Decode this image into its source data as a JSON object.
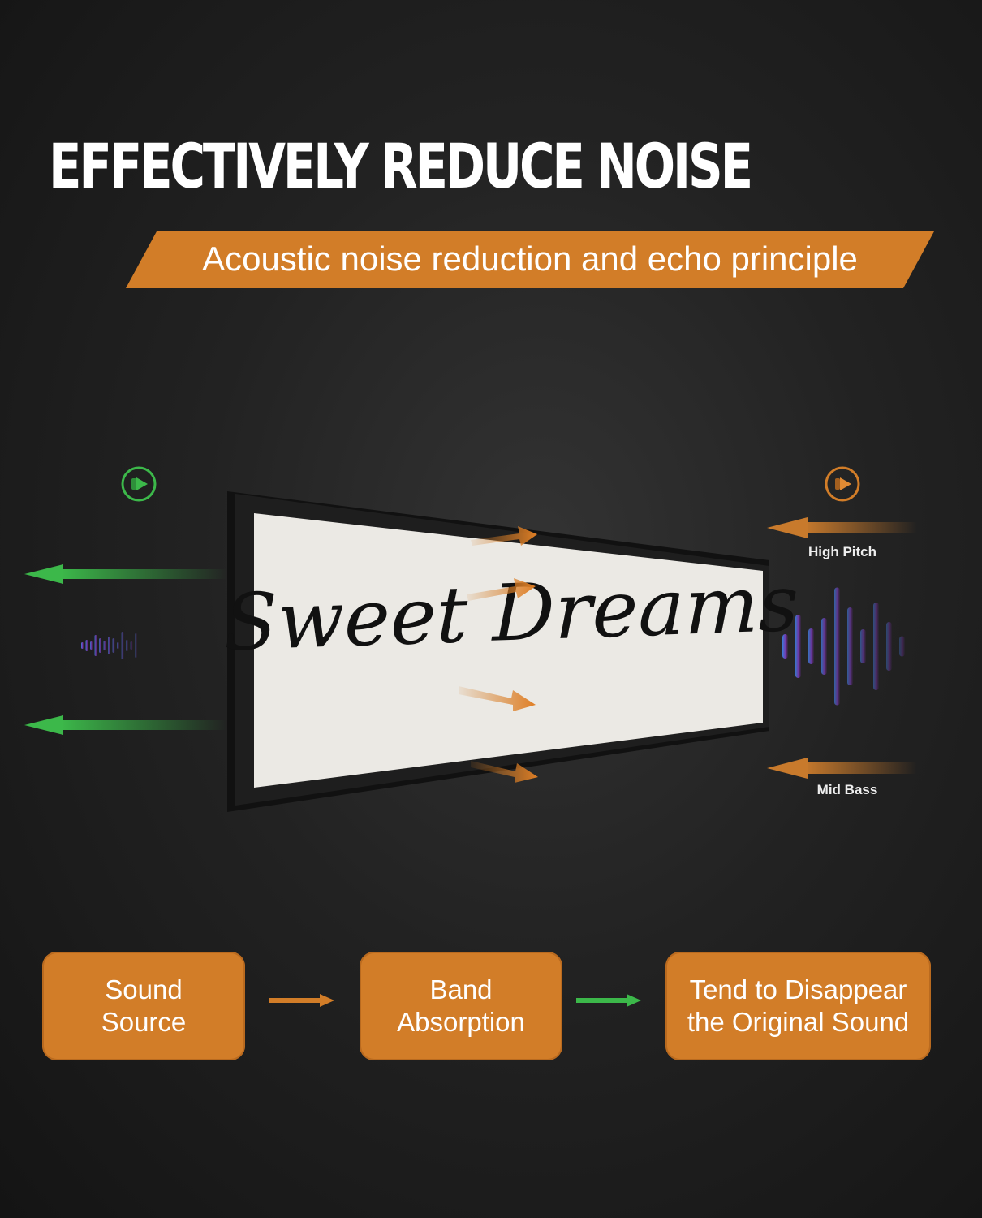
{
  "title": "EFFECTIVELY REDUCE NOISE",
  "banner": "Acoustic noise reduction and echo principle",
  "sign_text": "Sweet Dreams",
  "labels": {
    "high_pitch": "High Pitch",
    "mid_bass": "Mid Bass"
  },
  "icons": {
    "left": "speaker-icon",
    "right": "speaker-icon"
  },
  "colors": {
    "orange": "#d27d28",
    "green": "#3cb84a",
    "background": "#222222"
  },
  "flow": [
    {
      "line1": "Sound",
      "line2": "Source"
    },
    {
      "line1": "Band",
      "line2": "Absorption"
    },
    {
      "line1": "Tend to Disappear",
      "line2": "the Original Sound"
    }
  ]
}
